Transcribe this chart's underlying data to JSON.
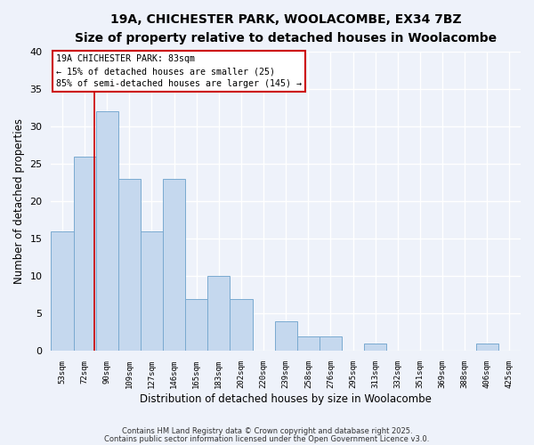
{
  "title_line1": "19A, CHICHESTER PARK, WOOLACOMBE, EX34 7BZ",
  "title_line2": "Size of property relative to detached houses in Woolacombe",
  "xlabel": "Distribution of detached houses by size in Woolacombe",
  "ylabel": "Number of detached properties",
  "background_color": "#eef2fa",
  "bar_color": "#c5d8ee",
  "bar_edge_color": "#7aaad0",
  "grid_color": "#ffffff",
  "categories": [
    "53sqm",
    "72sqm",
    "90sqm",
    "109sqm",
    "127sqm",
    "146sqm",
    "165sqm",
    "183sqm",
    "202sqm",
    "220sqm",
    "239sqm",
    "258sqm",
    "276sqm",
    "295sqm",
    "313sqm",
    "332sqm",
    "351sqm",
    "369sqm",
    "388sqm",
    "406sqm",
    "425sqm"
  ],
  "values": [
    16,
    26,
    32,
    23,
    16,
    23,
    7,
    10,
    7,
    0,
    4,
    2,
    2,
    0,
    1,
    0,
    0,
    0,
    0,
    1,
    0
  ],
  "ylim": [
    0,
    40
  ],
  "yticks": [
    0,
    5,
    10,
    15,
    20,
    25,
    30,
    35,
    40
  ],
  "vline_color": "#cc0000",
  "vline_x": 1.42,
  "annotation_text": "19A CHICHESTER PARK: 83sqm\n← 15% of detached houses are smaller (25)\n85% of semi-detached houses are larger (145) →",
  "annotation_box_color": "#ffffff",
  "annotation_box_edge_color": "#cc0000",
  "footer_line1": "Contains HM Land Registry data © Crown copyright and database right 2025.",
  "footer_line2": "Contains public sector information licensed under the Open Government Licence v3.0."
}
